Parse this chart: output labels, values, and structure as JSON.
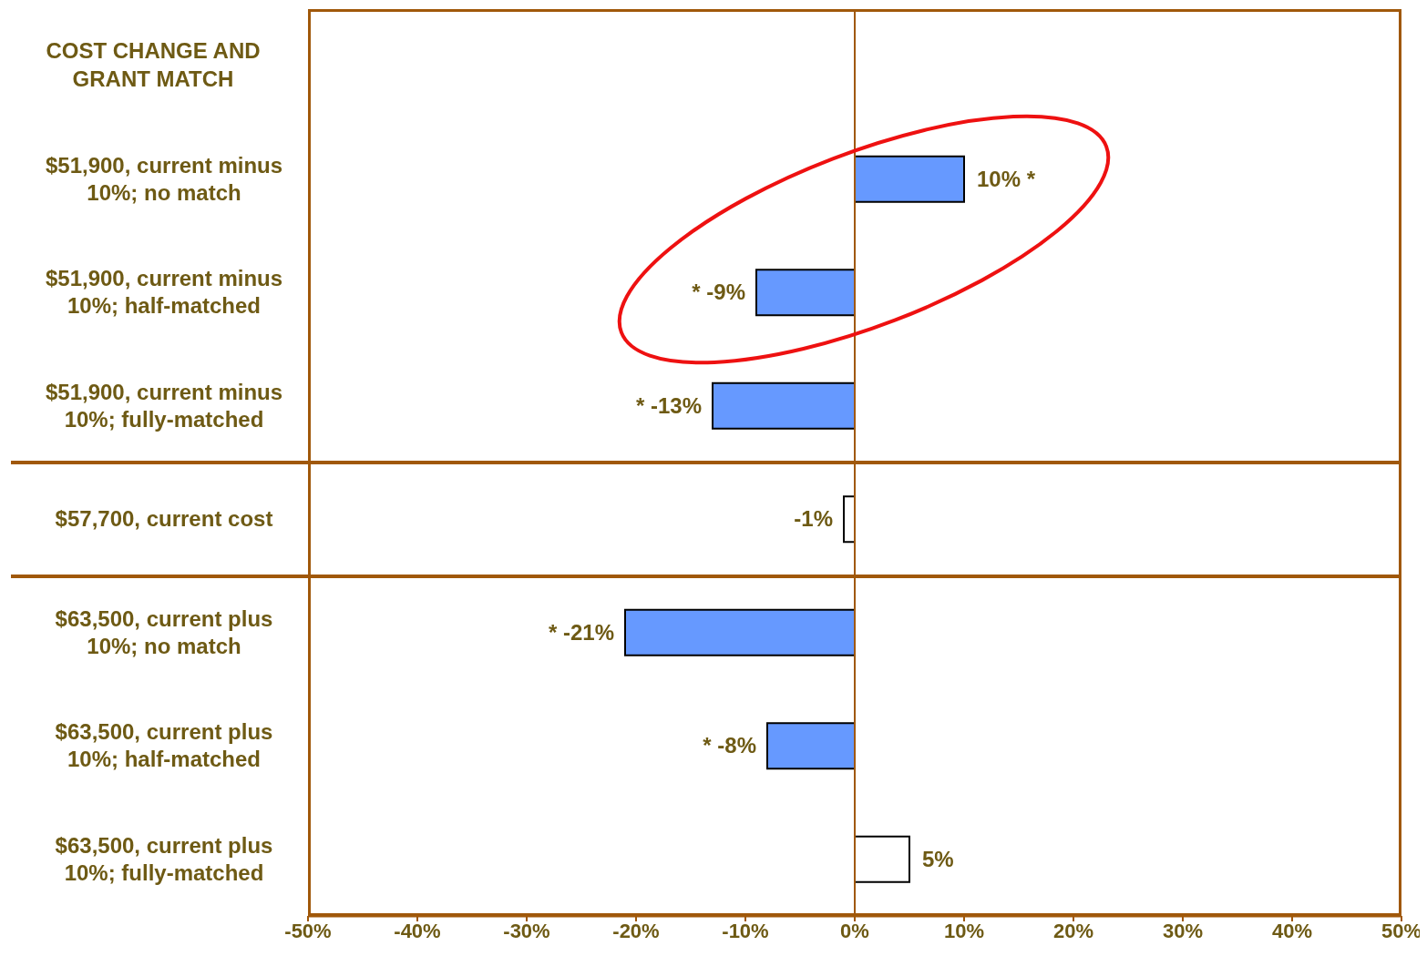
{
  "chart_data": {
    "type": "bar",
    "orientation": "horizontal",
    "ylabel": "COST CHANGE AND GRANT MATCH",
    "categories": [
      "$51,900, current minus 10%; no match",
      "$51,900, current minus 10%; half-matched",
      "$51,900, current minus 10%; fully-matched",
      "$57,700, current cost",
      "$63,500, current plus 10%; no match",
      "$63,500, current plus 10%; half-matched",
      "$63,500, current plus 10%; fully-matched"
    ],
    "values": [
      10,
      -9,
      -13,
      -1,
      -21,
      -8,
      5
    ],
    "colors": [
      "#6699ff",
      "#6699ff",
      "#6699ff",
      "#ffffff",
      "#6699ff",
      "#6699ff",
      "#ffffff"
    ],
    "value_labels": [
      "10% *",
      "* -9%",
      "* -13%",
      "-1%",
      "* -21%",
      "* -8%",
      "5%"
    ],
    "xlim": [
      -50,
      50
    ],
    "xticks": [
      {
        "value": -50,
        "label": "-50%"
      },
      {
        "value": -40,
        "label": "-40%"
      },
      {
        "value": -30,
        "label": "-30%"
      },
      {
        "value": -20,
        "label": "-20%"
      },
      {
        "value": -10,
        "label": "-10%"
      },
      {
        "value": 0,
        "label": "0%"
      },
      {
        "value": 10,
        "label": "10%"
      },
      {
        "value": 20,
        "label": "20%"
      },
      {
        "value": 30,
        "label": "30%"
      },
      {
        "value": 40,
        "label": "40%"
      },
      {
        "value": 50,
        "label": "50%"
      }
    ],
    "ref_lines": [
      {
        "axis": "x",
        "value": 0,
        "color": "#a0580a"
      }
    ],
    "grid": false,
    "legend": false
  }
}
